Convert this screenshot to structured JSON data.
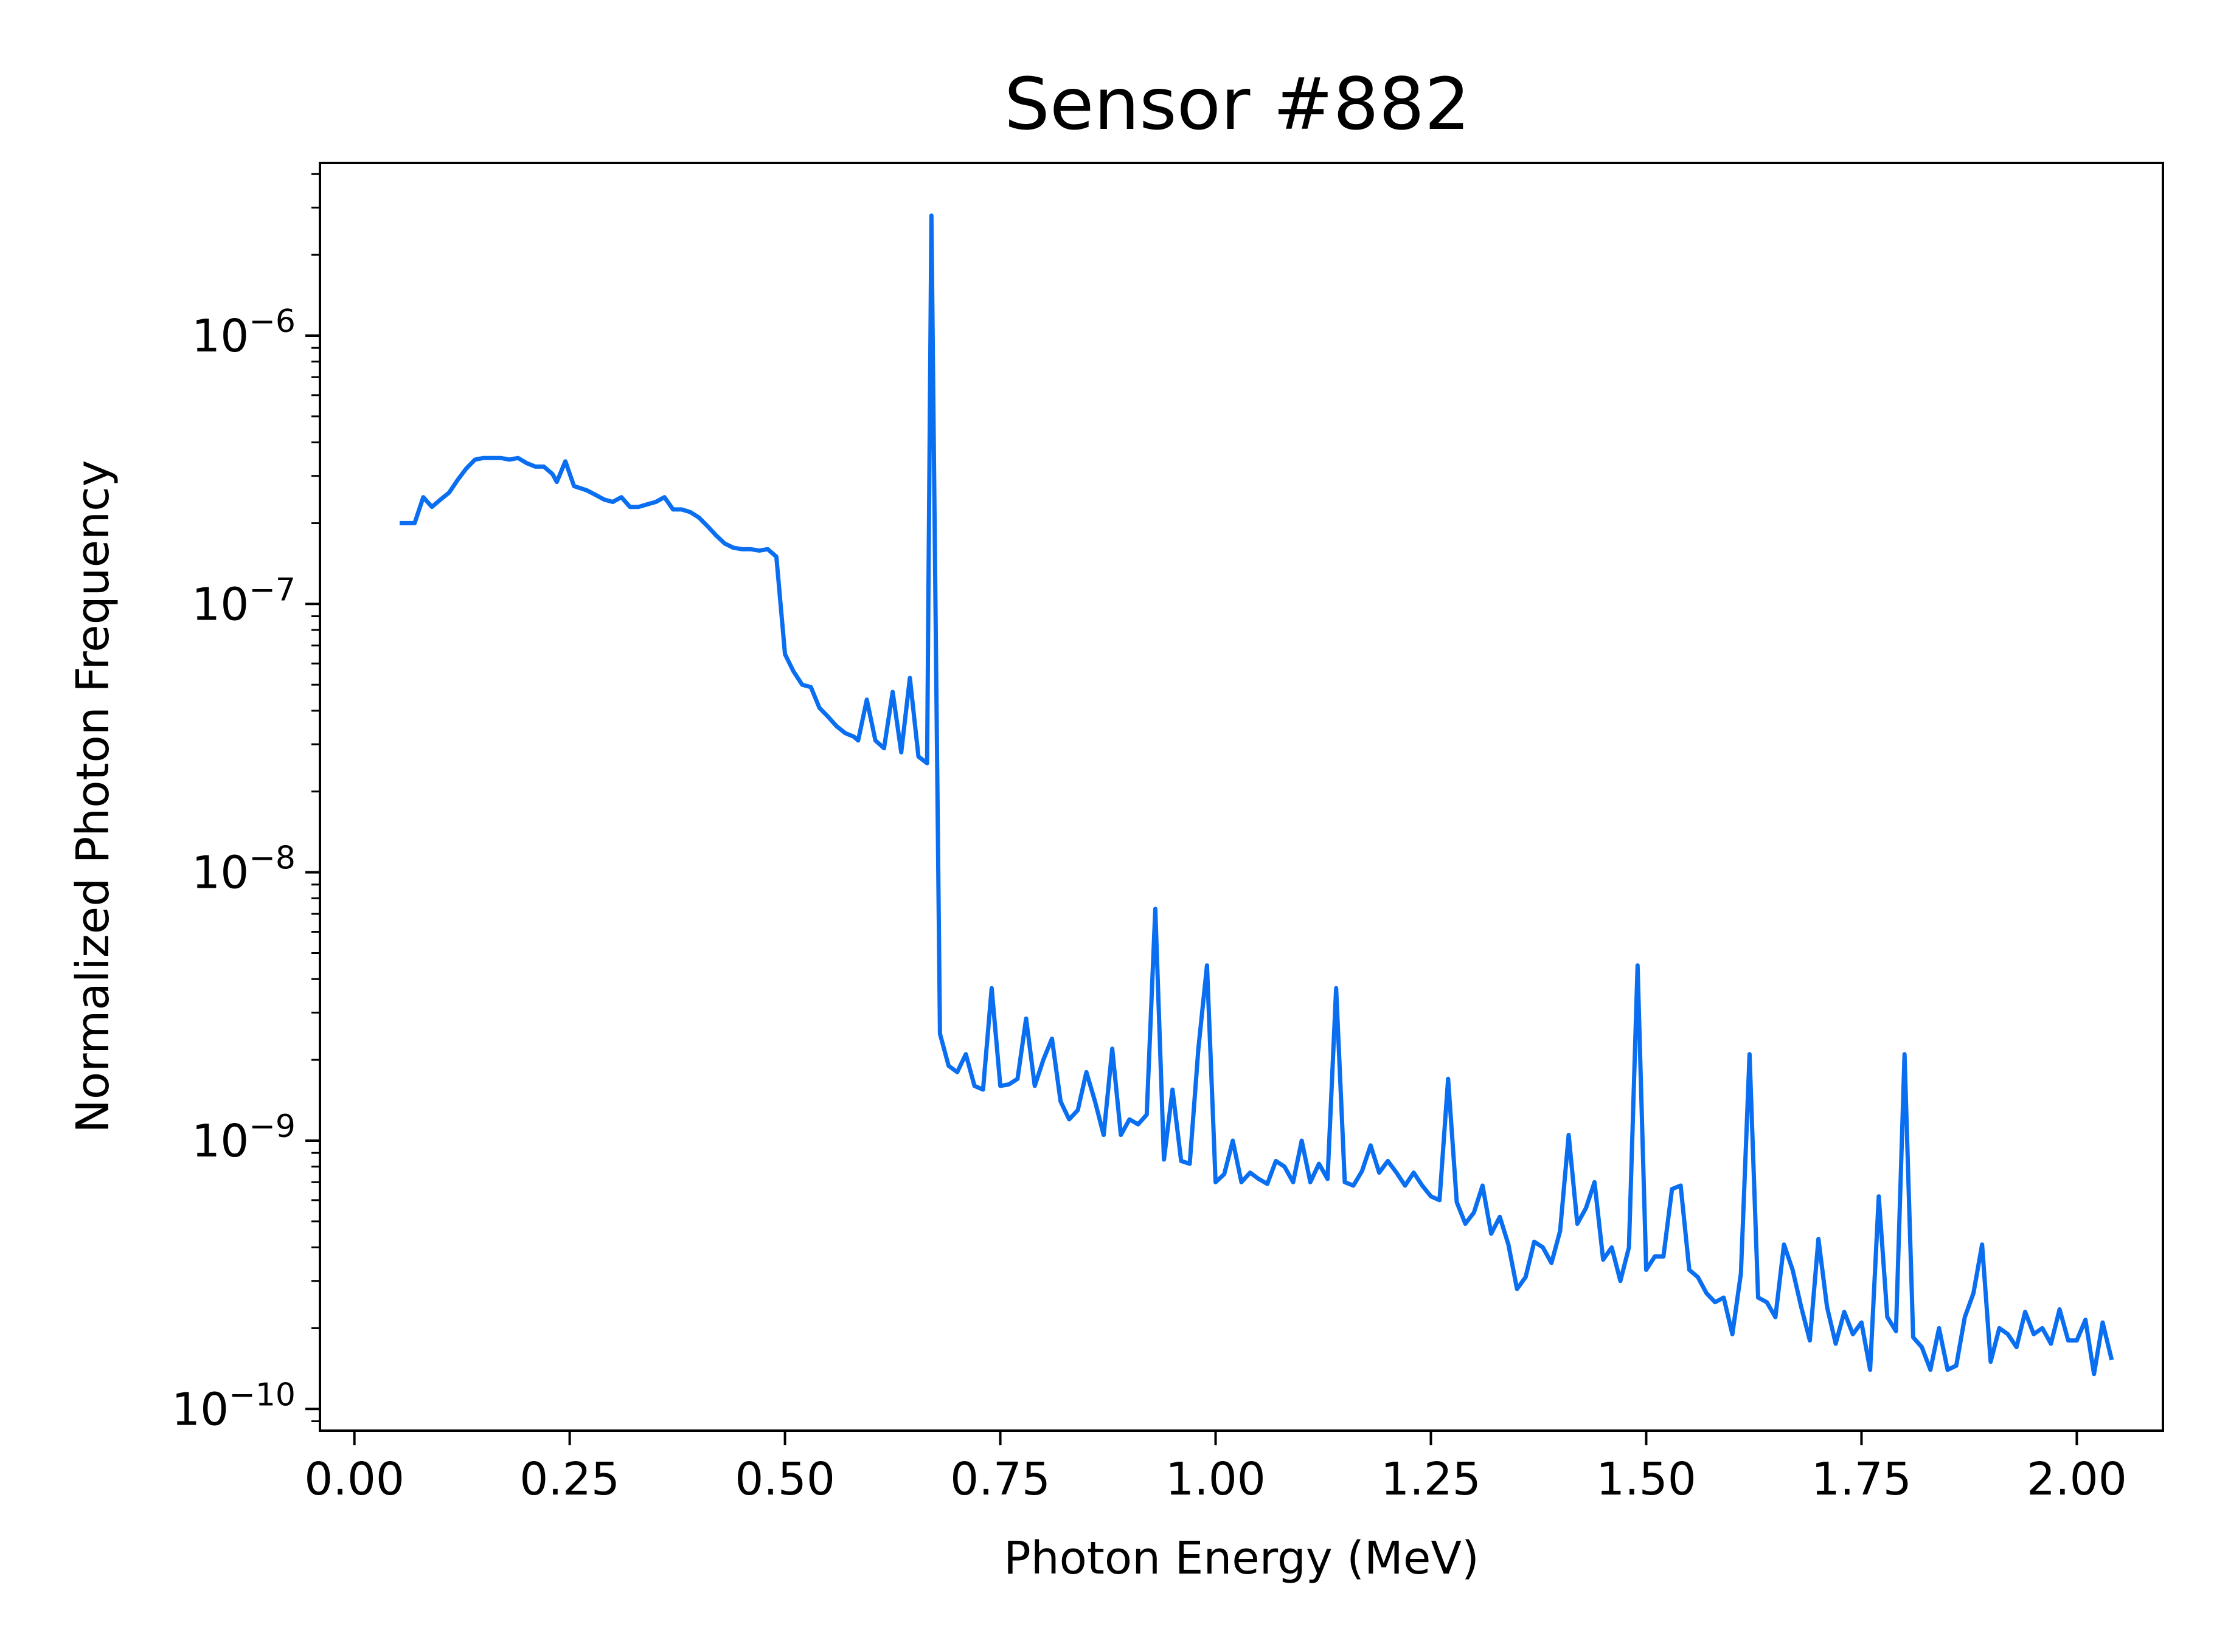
{
  "chart_data": {
    "type": "line",
    "title": "Sensor #882",
    "xlabel": "Photon Energy (MeV)",
    "ylabel": "Normalized Photon Frequency",
    "x_scale": "linear",
    "y_scale": "log",
    "xlim": [
      -0.04,
      2.1
    ],
    "ylim": [
      8.3e-11,
      4.4e-06
    ],
    "x_ticks": [
      0,
      0.25,
      0.5,
      0.75,
      1.0,
      1.25,
      1.5,
      1.75,
      2.0
    ],
    "x_tick_labels": [
      "0.00",
      "0.25",
      "0.50",
      "0.75",
      "1.00",
      "1.25",
      "1.50",
      "1.75",
      "2.00"
    ],
    "y_ticks": [
      {
        "value": 1e-10,
        "base": "10",
        "exponent": "−10"
      },
      {
        "value": 1e-09,
        "base": "10",
        "exponent": "−9"
      },
      {
        "value": 1e-08,
        "base": "10",
        "exponent": "−8"
      },
      {
        "value": 1e-07,
        "base": "10",
        "exponent": "−7"
      },
      {
        "value": 1e-06,
        "base": "10",
        "exponent": "−6"
      }
    ],
    "grid": false,
    "legend": "none",
    "series": [
      {
        "color": "#0a6ef0",
        "points": [
          [
            0.055,
            2e-07
          ],
          [
            0.07,
            2e-07
          ],
          [
            0.08,
            2.5e-07
          ],
          [
            0.09,
            2.3e-07
          ],
          [
            0.1,
            2.45e-07
          ],
          [
            0.11,
            2.6e-07
          ],
          [
            0.12,
            2.9e-07
          ],
          [
            0.13,
            3.2e-07
          ],
          [
            0.14,
            3.45e-07
          ],
          [
            0.15,
            3.5e-07
          ],
          [
            0.16,
            3.5e-07
          ],
          [
            0.17,
            3.5e-07
          ],
          [
            0.18,
            3.45e-07
          ],
          [
            0.19,
            3.5e-07
          ],
          [
            0.2,
            3.35e-07
          ],
          [
            0.21,
            3.25e-07
          ],
          [
            0.22,
            3.25e-07
          ],
          [
            0.23,
            3.05e-07
          ],
          [
            0.235,
            2.85e-07
          ],
          [
            0.245,
            3.4e-07
          ],
          [
            0.255,
            2.75e-07
          ],
          [
            0.27,
            2.65e-07
          ],
          [
            0.28,
            2.55e-07
          ],
          [
            0.29,
            2.45e-07
          ],
          [
            0.3,
            2.4e-07
          ],
          [
            0.31,
            2.5e-07
          ],
          [
            0.32,
            2.3e-07
          ],
          [
            0.33,
            2.3e-07
          ],
          [
            0.34,
            2.35e-07
          ],
          [
            0.35,
            2.4e-07
          ],
          [
            0.36,
            2.5e-07
          ],
          [
            0.37,
            2.25e-07
          ],
          [
            0.38,
            2.25e-07
          ],
          [
            0.39,
            2.2e-07
          ],
          [
            0.4,
            2.1e-07
          ],
          [
            0.41,
            1.95e-07
          ],
          [
            0.42,
            1.8e-07
          ],
          [
            0.43,
            1.68e-07
          ],
          [
            0.44,
            1.62e-07
          ],
          [
            0.45,
            1.6e-07
          ],
          [
            0.46,
            1.6e-07
          ],
          [
            0.47,
            1.58e-07
          ],
          [
            0.48,
            1.6e-07
          ],
          [
            0.49,
            1.5e-07
          ],
          [
            0.5,
            6.5e-08
          ],
          [
            0.51,
            5.6e-08
          ],
          [
            0.52,
            5e-08
          ],
          [
            0.53,
            4.9e-08
          ],
          [
            0.54,
            4.1e-08
          ],
          [
            0.55,
            3.8e-08
          ],
          [
            0.56,
            3.5e-08
          ],
          [
            0.57,
            3.3e-08
          ],
          [
            0.58,
            3.2e-08
          ],
          [
            0.585,
            3.1e-08
          ],
          [
            0.595,
            4.4e-08
          ],
          [
            0.605,
            3.1e-08
          ],
          [
            0.615,
            2.9e-08
          ],
          [
            0.625,
            4.7e-08
          ],
          [
            0.635,
            2.8e-08
          ],
          [
            0.645,
            5.3e-08
          ],
          [
            0.655,
            2.7e-08
          ],
          [
            0.665,
            2.55e-08
          ],
          [
            0.67,
            2.8e-06
          ],
          [
            0.68,
            2.5e-09
          ],
          [
            0.69,
            1.9e-09
          ],
          [
            0.7,
            1.8e-09
          ],
          [
            0.71,
            2.1e-09
          ],
          [
            0.72,
            1.6e-09
          ],
          [
            0.73,
            1.55e-09
          ],
          [
            0.74,
            3.7e-09
          ],
          [
            0.75,
            1.6e-09
          ],
          [
            0.76,
            1.62e-09
          ],
          [
            0.77,
            1.7e-09
          ],
          [
            0.78,
            2.85e-09
          ],
          [
            0.79,
            1.6e-09
          ],
          [
            0.8,
            2e-09
          ],
          [
            0.81,
            2.4e-09
          ],
          [
            0.82,
            1.4e-09
          ],
          [
            0.83,
            1.2e-09
          ],
          [
            0.84,
            1.3e-09
          ],
          [
            0.85,
            1.8e-09
          ],
          [
            0.86,
            1.4e-09
          ],
          [
            0.87,
            1.05e-09
          ],
          [
            0.88,
            2.2e-09
          ],
          [
            0.89,
            1.05e-09
          ],
          [
            0.9,
            1.2e-09
          ],
          [
            0.91,
            1.15e-09
          ],
          [
            0.92,
            1.25e-09
          ],
          [
            0.93,
            7.3e-09
          ],
          [
            0.94,
            8.5e-10
          ],
          [
            0.95,
            1.55e-09
          ],
          [
            0.96,
            8.4e-10
          ],
          [
            0.97,
            8.2e-10
          ],
          [
            0.98,
            2.2e-09
          ],
          [
            0.99,
            4.5e-09
          ],
          [
            1.0,
            7e-10
          ],
          [
            1.01,
            7.5e-10
          ],
          [
            1.02,
            1e-09
          ],
          [
            1.03,
            7e-10
          ],
          [
            1.04,
            7.6e-10
          ],
          [
            1.05,
            7.2e-10
          ],
          [
            1.06,
            6.9e-10
          ],
          [
            1.07,
            8.4e-10
          ],
          [
            1.08,
            8e-10
          ],
          [
            1.09,
            7e-10
          ],
          [
            1.1,
            1e-09
          ],
          [
            1.11,
            7e-10
          ],
          [
            1.12,
            8.2e-10
          ],
          [
            1.13,
            7.2e-10
          ],
          [
            1.14,
            3.7e-09
          ],
          [
            1.15,
            7e-10
          ],
          [
            1.16,
            6.8e-10
          ],
          [
            1.17,
            7.7e-10
          ],
          [
            1.18,
            9.6e-10
          ],
          [
            1.19,
            7.6e-10
          ],
          [
            1.2,
            8.4e-10
          ],
          [
            1.21,
            7.6e-10
          ],
          [
            1.22,
            6.8e-10
          ],
          [
            1.23,
            7.6e-10
          ],
          [
            1.24,
            6.8e-10
          ],
          [
            1.25,
            6.2e-10
          ],
          [
            1.26,
            6e-10
          ],
          [
            1.27,
            1.7e-09
          ],
          [
            1.28,
            5.9e-10
          ],
          [
            1.29,
            4.9e-10
          ],
          [
            1.3,
            5.4e-10
          ],
          [
            1.31,
            6.8e-10
          ],
          [
            1.32,
            4.5e-10
          ],
          [
            1.33,
            5.2e-10
          ],
          [
            1.34,
            4.1e-10
          ],
          [
            1.35,
            2.8e-10
          ],
          [
            1.36,
            3.1e-10
          ],
          [
            1.37,
            4.2e-10
          ],
          [
            1.38,
            4e-10
          ],
          [
            1.39,
            3.5e-10
          ],
          [
            1.4,
            4.6e-10
          ],
          [
            1.41,
            1.05e-09
          ],
          [
            1.42,
            4.9e-10
          ],
          [
            1.43,
            5.6e-10
          ],
          [
            1.44,
            7e-10
          ],
          [
            1.45,
            3.6e-10
          ],
          [
            1.46,
            4e-10
          ],
          [
            1.47,
            3e-10
          ],
          [
            1.48,
            4e-10
          ],
          [
            1.49,
            4.5e-09
          ],
          [
            1.5,
            3.3e-10
          ],
          [
            1.51,
            3.7e-10
          ],
          [
            1.52,
            3.7e-10
          ],
          [
            1.53,
            6.6e-10
          ],
          [
            1.54,
            6.8e-10
          ],
          [
            1.55,
            3.3e-10
          ],
          [
            1.56,
            3.1e-10
          ],
          [
            1.57,
            2.7e-10
          ],
          [
            1.58,
            2.5e-10
          ],
          [
            1.59,
            2.6e-10
          ],
          [
            1.6,
            1.9e-10
          ],
          [
            1.61,
            3.2e-10
          ],
          [
            1.62,
            2.1e-09
          ],
          [
            1.63,
            2.6e-10
          ],
          [
            1.64,
            2.5e-10
          ],
          [
            1.65,
            2.2e-10
          ],
          [
            1.66,
            4.1e-10
          ],
          [
            1.67,
            3.3e-10
          ],
          [
            1.68,
            2.4e-10
          ],
          [
            1.69,
            1.8e-10
          ],
          [
            1.7,
            4.3e-10
          ],
          [
            1.71,
            2.4e-10
          ],
          [
            1.72,
            1.75e-10
          ],
          [
            1.73,
            2.3e-10
          ],
          [
            1.74,
            1.9e-10
          ],
          [
            1.75,
            2.1e-10
          ],
          [
            1.76,
            1.4e-10
          ],
          [
            1.77,
            6.2e-10
          ],
          [
            1.78,
            2.2e-10
          ],
          [
            1.79,
            1.95e-10
          ],
          [
            1.8,
            2.1e-09
          ],
          [
            1.81,
            1.85e-10
          ],
          [
            1.82,
            1.7e-10
          ],
          [
            1.83,
            1.4e-10
          ],
          [
            1.84,
            2e-10
          ],
          [
            1.85,
            1.4e-10
          ],
          [
            1.86,
            1.45e-10
          ],
          [
            1.87,
            2.2e-10
          ],
          [
            1.88,
            2.7e-10
          ],
          [
            1.89,
            4.1e-10
          ],
          [
            1.9,
            1.5e-10
          ],
          [
            1.91,
            2e-10
          ],
          [
            1.92,
            1.9e-10
          ],
          [
            1.93,
            1.7e-10
          ],
          [
            1.94,
            2.3e-10
          ],
          [
            1.95,
            1.9e-10
          ],
          [
            1.96,
            2e-10
          ],
          [
            1.97,
            1.75e-10
          ],
          [
            1.98,
            2.35e-10
          ],
          [
            1.99,
            1.8e-10
          ],
          [
            2.0,
            1.8e-10
          ],
          [
            2.01,
            2.15e-10
          ],
          [
            2.02,
            1.35e-10
          ],
          [
            2.03,
            2.1e-10
          ],
          [
            2.04,
            1.55e-10
          ]
        ]
      }
    ]
  }
}
